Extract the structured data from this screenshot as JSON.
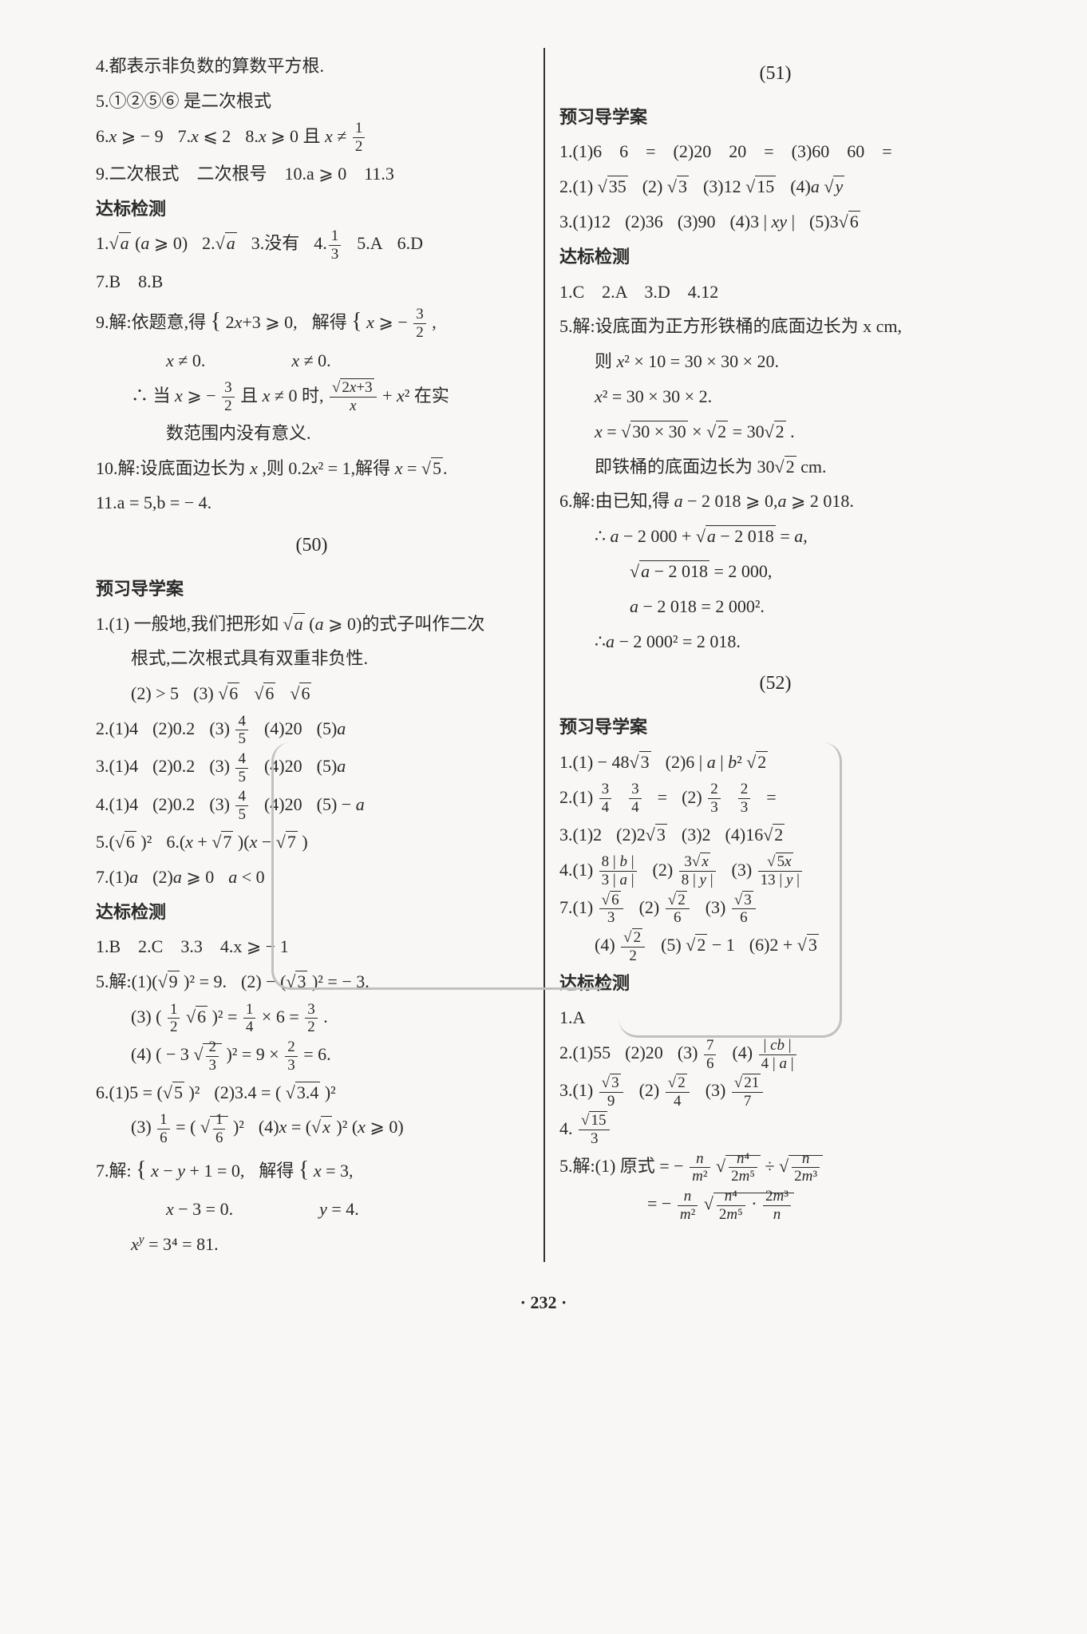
{
  "footer": "· 232 ·",
  "left": {
    "l4": "4.都表示非负数的算数平方根.",
    "l5": "5.①②⑤⑥ 是二次根式",
    "l6": "6.x ⩾ − 9　7.x ⩽ 2　8.x ⩾ 0 且 x ≠ 1/2",
    "l9": "9.二次根式　二次根号　10.a ⩾ 0　11.3",
    "h_db1": "达标检测",
    "d1": "1.√a (a ⩾ 0)　2.√a　3.没有　4. 1/3　5.A　6.D",
    "d7": "7.B　8.B",
    "d9a": "9.解:依题意,得 { 2x+3 ⩾ 0,  解得 { x ⩾ − 3/2 ,",
    "d9b": "x ≠ 0.            x ≠ 0.",
    "d9c": "∴ 当 x ⩾ − 3/2 且 x ≠ 0 时, √(2x+3)/x + x² 在实",
    "d9d": "数范围内没有意义.",
    "d10": "10.解:设底面边长为 x ,则 0.2x² = 1,解得 x = √5 .",
    "d11": "11.a = 5,b = − 4.",
    "sec50": "(50)",
    "h_yx1": "预习导学案",
    "p1a": "1.(1) 一般地,我们把形如 √a (a ⩾ 0)的式子叫作二次",
    "p1b": "根式,二次根式具有双重非负性.",
    "p1c": "(2) > 5　(3) √6　√6　√6",
    "p2": "2.(1)4　(2)0.2　(3) 4/5　(4)20　(5)a",
    "p3": "3.(1)4　(2)0.2　(3) 4/5　(4)20　(5)a",
    "p4": "4.(1)4　(2)0.2　(3) 4/5　(4)20　(5) − a",
    "p5": "5.(√6 )²　6.(x + √7 )(x − √7 )",
    "p7": "7.(1)a　(2)a ⩾ 0　a < 0",
    "h_db2": "达标检测",
    "e1": "1.B　2.C　3.3　4.x ⩾ − 1",
    "e5a": "5.解:(1)(√9 )² = 9.　(2) − (√3 )² = − 3.",
    "e5b": "(3) ( 1/2 √6 )² = 1/4 × 6 = 3/2 .",
    "e5c": "(4) ( − 3 √(2/3) )² = 9 × 2/3 = 6.",
    "e6a": "6.(1)5 = (√5 )²　(2)3.4 = ( √3.4 )²",
    "e6b": "(3) 1/6 = ( √(1/6) )²　(4)x = (√x )² (x ⩾ 0)",
    "e7a": "7.解: { x − y + 1 = 0,  解得 { x = 3,",
    "e7b": "x − 3 = 0.           y = 4.",
    "e7c": "xʸ = 3⁴ = 81."
  },
  "right": {
    "sec51": "(51)",
    "h_yx1": "预习导学案",
    "q1": "1.(1)6　6　=　(2)20　20　=　(3)60　60　=",
    "q2": "2.(1) √35　(2) √3　(3)12 √15　(4)a √y",
    "q3": "3.(1)12　(2)36　(3)90　(4)3 | xy |　(5)3√6",
    "h_db1": "达标检测",
    "r1": "1.C　2.A　3.D　4.12",
    "r5a": "5.解:设底面为正方形铁桶的底面边长为 x cm,",
    "r5b": "则 x² × 10 = 30 × 30 × 20.",
    "r5c": "x² = 30 × 30 × 2.",
    "r5d": "x = √(30 × 30) × √2 = 30√2 .",
    "r5e": "即铁桶的底面边长为 30√2 cm.",
    "r6a": "6.解:由已知,得 a − 2 018 ⩾ 0,a ⩾ 2 018.",
    "r6b": "∴ a − 2 000 + √(a − 2 018) = a,",
    "r6c": "√(a − 2 018) = 2 000,",
    "r6d": "a − 2 018 = 2 000².",
    "r6e": "∴a − 2 000² = 2 018.",
    "sec52": "(52)",
    "h_yx2": "预习导学案",
    "s1": "1.(1) − 48√3　(2)6 | a | b² √2",
    "s2": "2.(1) 3/4　3/4　=　(2) 2/3　2/3　=",
    "s3": "3.(1)2　(2)2√3　(3)2　(4)16√2",
    "s4": "4.(1) 8|b| / 3|a|　(2) 3√x / 8|y|　(3) √(5x) / 13|y|",
    "s7": "7.(1) √6/3　(2) √2/6　(3) √3/6",
    "s7b": "(4) √2/2　(5) √2 − 1　(6)2 + √3",
    "h_db2": "达标检测",
    "t1": "1.A",
    "t2": "2.(1)55　(2)20　(3) 7/6　(4) |cb| / 4|a|",
    "t3": "3.(1) √3/9　(2) √2/4　(3) √21/7",
    "t4": "4. √15 / 3",
    "t5a": "5.解:(1) 原式 = − n/m² √( n⁴ / 2m⁵ ) ÷ √( n / 2m³ )",
    "t5b": "= − n/m² √( n⁴/2m⁵ · 2m³/n )"
  }
}
